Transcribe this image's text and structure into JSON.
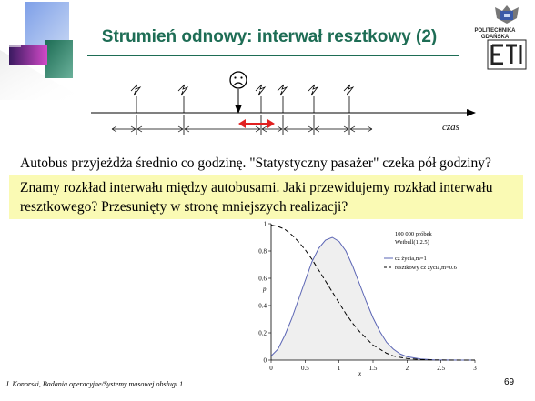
{
  "slide": {
    "title": "Strumień odnowy: interwał resztkowy (2)",
    "logo": {
      "line1": "POLITECHNIKA",
      "line2": "GDAŃSKA",
      "letters": "ETI"
    },
    "timeline_axis_label": "czas",
    "sad_face_icon": "sad-face-icon",
    "lightning_icon": "lightning-bolt-icon",
    "arrow_color": "#e02020",
    "text_line1": "Autobus przyjeżdża średnio co godzinę. \"Statystyczny pasażer\" czeka pół godziny?",
    "highlight_text": "Znamy rozkład interwału między autobusami. Jaki przewidujemy rozkład interwału resztkowego? Przesunięty w stronę mniejszych realizacji?",
    "highlight_color": "#fafab4",
    "footer": "J. Konorski, Badania operacyjne/Systemy masowej obsługi 1",
    "page_number": "69"
  },
  "chart_data": {
    "type": "line",
    "annotation_line1": "100 000 próbek",
    "annotation_line2": "Weibull(1,2.5)",
    "xlabel": "x",
    "ylabel": "p",
    "xlim": [
      0,
      3
    ],
    "ylim": [
      0,
      1
    ],
    "x_ticks": [
      "0",
      "0.5",
      "1",
      "1.5",
      "2",
      "2.5",
      "3"
    ],
    "y_ticks": [
      "0",
      "0.2",
      "0.4",
      "0.6",
      "0.8",
      "1"
    ],
    "series": [
      {
        "name": "cz życia,m=1",
        "style": "solid",
        "color": "#5a64b4",
        "x": [
          0,
          0.1,
          0.2,
          0.3,
          0.4,
          0.5,
          0.6,
          0.7,
          0.8,
          0.9,
          1.0,
          1.1,
          1.2,
          1.3,
          1.4,
          1.5,
          1.6,
          1.7,
          1.8,
          1.9,
          2.0,
          2.2,
          2.4,
          2.6,
          2.8,
          3.0
        ],
        "y": [
          0.03,
          0.08,
          0.18,
          0.3,
          0.44,
          0.58,
          0.72,
          0.82,
          0.88,
          0.9,
          0.87,
          0.8,
          0.69,
          0.56,
          0.43,
          0.31,
          0.21,
          0.13,
          0.08,
          0.045,
          0.025,
          0.008,
          0.002,
          0.0005,
          0.0001,
          0
        ]
      },
      {
        "name": "resztkowy cz życia,m=0.6",
        "style": "dashed",
        "color": "#000000",
        "x": [
          0,
          0.1,
          0.2,
          0.3,
          0.4,
          0.5,
          0.6,
          0.7,
          0.8,
          0.9,
          1.0,
          1.1,
          1.2,
          1.3,
          1.4,
          1.5,
          1.6,
          1.7,
          1.8,
          1.9,
          2.0,
          2.2,
          2.4,
          2.6,
          2.8,
          3.0
        ],
        "y": [
          0.99,
          0.98,
          0.96,
          0.92,
          0.87,
          0.81,
          0.74,
          0.66,
          0.58,
          0.5,
          0.42,
          0.34,
          0.27,
          0.21,
          0.16,
          0.11,
          0.08,
          0.05,
          0.03,
          0.02,
          0.012,
          0.004,
          0.001,
          0.0002,
          0,
          0
        ]
      }
    ]
  }
}
